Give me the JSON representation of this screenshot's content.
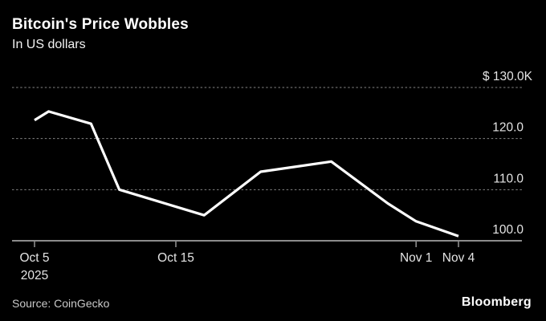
{
  "header": {
    "title": "Bitcoin's Price Wobbles",
    "subtitle": "In US dollars"
  },
  "footer": {
    "source": "Source: CoinGecko",
    "logo": "Bloomberg"
  },
  "colors": {
    "background": "#000000",
    "title_text": "#ffffff",
    "line": "#ffffff",
    "gridline": "#848484",
    "axis": "#8c8c8c",
    "tick_label": "#e4e4e4",
    "source_text": "#c9c9c9"
  },
  "chart_data": {
    "type": "line",
    "title": "Bitcoin's Price Wobbles",
    "subtitle": "In US dollars",
    "unit": "USD thousands",
    "ylim": [
      100,
      131
    ],
    "grid": "horizontal-dotted",
    "legend": "none",
    "y_ticks": [
      {
        "label": "$ 130.0K",
        "value": 130,
        "axis_line": false
      },
      {
        "label": "120.0",
        "value": 120,
        "axis_line": false
      },
      {
        "label": "110.0",
        "value": 110,
        "axis_line": false
      },
      {
        "label": "100.0",
        "value": 100,
        "axis_line": true
      }
    ],
    "x_ticks": [
      {
        "label": "Oct 5",
        "sublabel": "2025",
        "day": 0
      },
      {
        "label": "Oct 15",
        "sublabel": "",
        "day": 10
      },
      {
        "label": "Nov 1",
        "sublabel": "",
        "day": 27
      },
      {
        "label": "Nov 4",
        "sublabel": "",
        "day": 30
      }
    ],
    "series": [
      {
        "name": "Bitcoin price, thousands of US dollars",
        "points": [
          {
            "date": "Oct 5",
            "day": 0,
            "value": 123.6
          },
          {
            "date": "Oct 6",
            "day": 1,
            "value": 125.3
          },
          {
            "date": "Oct 9",
            "day": 4,
            "value": 122.9
          },
          {
            "date": "Oct 11",
            "day": 6,
            "value": 110.0
          },
          {
            "date": "Oct 17",
            "day": 12,
            "value": 105.0
          },
          {
            "date": "Oct 21",
            "day": 16,
            "value": 113.5
          },
          {
            "date": "Oct 26",
            "day": 21,
            "value": 115.5
          },
          {
            "date": "Oct 30",
            "day": 25,
            "value": 107.3
          },
          {
            "date": "Nov 1",
            "day": 27,
            "value": 103.8
          },
          {
            "date": "Nov 4",
            "day": 30,
            "value": 100.9
          }
        ]
      }
    ]
  }
}
